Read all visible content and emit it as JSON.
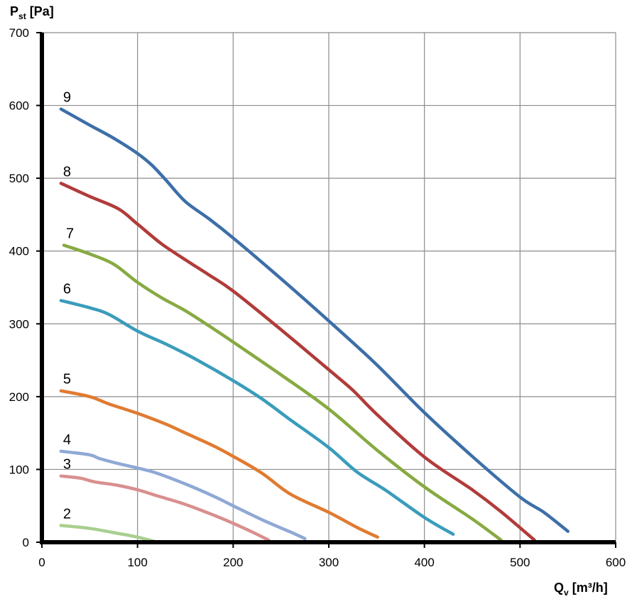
{
  "chart_data": {
    "type": "line",
    "y_axis_label": {
      "main": "P",
      "sub": "st",
      "unit": " [Pa]"
    },
    "x_axis_label": {
      "main": "Q",
      "sub": "v",
      "unit": " [m³/h]"
    },
    "xlim": [
      0,
      600
    ],
    "ylim": [
      0,
      700
    ],
    "x_ticks": [
      0,
      100,
      200,
      300,
      400,
      500,
      600
    ],
    "y_ticks": [
      0,
      100,
      200,
      300,
      400,
      500,
      600,
      700
    ],
    "x_tick_labels": [
      "0",
      "100",
      "200",
      "300",
      "400",
      "500",
      "600"
    ],
    "y_tick_labels": [
      "0",
      "100",
      "200",
      "300",
      "400",
      "500",
      "600",
      "700"
    ],
    "grid": true,
    "series": [
      {
        "name": "2",
        "color": "#a9cf8f",
        "x": [
          20,
          50,
          80,
          100,
          118
        ],
        "y": [
          23,
          19,
          12,
          7,
          1
        ]
      },
      {
        "name": "3",
        "color": "#d98f8f",
        "x": [
          20,
          40,
          55,
          80,
          100,
          120,
          150,
          180,
          200,
          220,
          237
        ],
        "y": [
          91,
          88,
          83,
          78,
          72,
          64,
          52,
          37,
          26,
          14,
          3
        ]
      },
      {
        "name": "4",
        "color": "#8fa8d6",
        "x": [
          20,
          50,
          60,
          80,
          100,
          120,
          150,
          180,
          200,
          230,
          260,
          275
        ],
        "y": [
          125,
          120,
          115,
          108,
          102,
          95,
          80,
          63,
          50,
          31,
          14,
          5
        ]
      },
      {
        "name": "5",
        "color": "#e07b31",
        "x": [
          20,
          50,
          70,
          100,
          130,
          150,
          180,
          200,
          230,
          260,
          300,
          330,
          351
        ],
        "y": [
          208,
          200,
          190,
          177,
          162,
          150,
          132,
          118,
          95,
          66,
          41,
          20,
          7
        ]
      },
      {
        "name": "6",
        "color": "#3a9cbb",
        "x": [
          20,
          50,
          70,
          100,
          130,
          160,
          200,
          230,
          260,
          300,
          330,
          360,
          400,
          430
        ],
        "y": [
          332,
          322,
          313,
          290,
          272,
          252,
          222,
          197,
          168,
          130,
          96,
          71,
          34,
          11
        ]
      },
      {
        "name": "7",
        "color": "#87aa42",
        "x": [
          23,
          50,
          75,
          100,
          125,
          150,
          175,
          200,
          250,
          300,
          350,
          400,
          450,
          480
        ],
        "y": [
          408,
          396,
          382,
          357,
          336,
          318,
          297,
          275,
          230,
          183,
          127,
          76,
          32,
          3
        ]
      },
      {
        "name": "8",
        "color": "#b03c3a",
        "x": [
          20,
          50,
          80,
          100,
          125,
          150,
          175,
          200,
          250,
          300,
          325,
          350,
          400,
          450,
          480,
          515
        ],
        "y": [
          493,
          475,
          458,
          437,
          410,
          388,
          367,
          345,
          292,
          237,
          209,
          176,
          117,
          72,
          42,
          3
        ]
      },
      {
        "name": "9",
        "color": "#3d6fa8",
        "x": [
          20,
          50,
          75,
          100,
          115,
          130,
          150,
          175,
          200,
          250,
          300,
          350,
          400,
          450,
          500,
          525,
          550
        ],
        "y": [
          595,
          573,
          555,
          534,
          518,
          497,
          468,
          444,
          418,
          362,
          304,
          244,
          178,
          118,
          62,
          41,
          15
        ]
      }
    ]
  }
}
